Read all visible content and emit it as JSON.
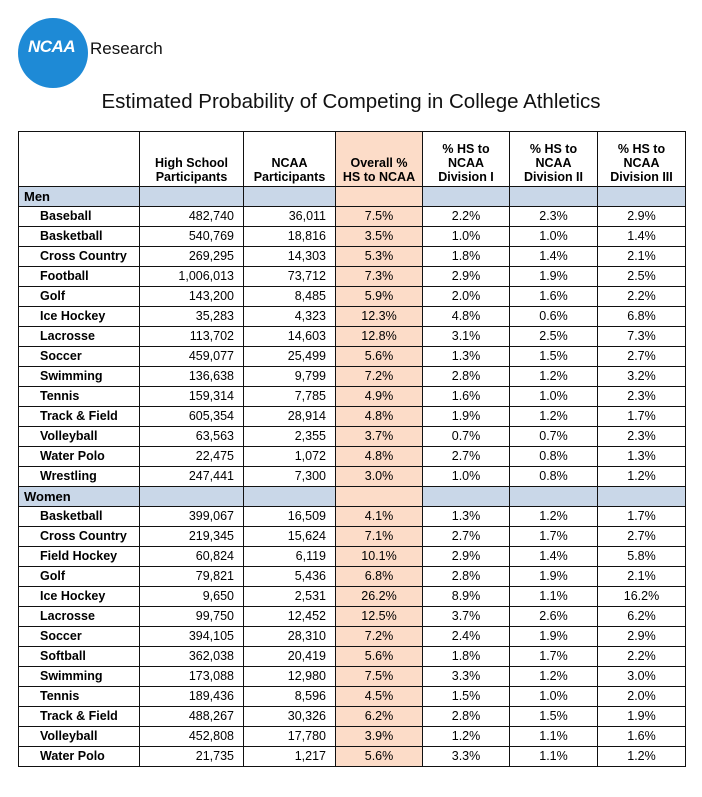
{
  "brand": {
    "logo_text": "NCAA",
    "suffix": "Research"
  },
  "title": "Estimated Probability of Competing in College Athletics",
  "table": {
    "headers": {
      "sport": "",
      "hs": [
        "High School",
        "Participants"
      ],
      "ncaa": [
        "NCAA",
        "Participants"
      ],
      "overall": [
        "Overall %",
        "HS to NCAA"
      ],
      "d1": [
        "% HS to",
        "NCAA",
        "Division I"
      ],
      "d2": [
        "% HS to",
        "NCAA",
        "Division II"
      ],
      "d3": [
        "% HS to",
        "NCAA",
        "Division III"
      ]
    },
    "sections": [
      {
        "label": "Men",
        "rows": [
          [
            "Baseball",
            "482,740",
            "36,011",
            "7.5%",
            "2.2%",
            "2.3%",
            "2.9%"
          ],
          [
            "Basketball",
            "540,769",
            "18,816",
            "3.5%",
            "1.0%",
            "1.0%",
            "1.4%"
          ],
          [
            "Cross Country",
            "269,295",
            "14,303",
            "5.3%",
            "1.8%",
            "1.4%",
            "2.1%"
          ],
          [
            "Football",
            "1,006,013",
            "73,712",
            "7.3%",
            "2.9%",
            "1.9%",
            "2.5%"
          ],
          [
            "Golf",
            "143,200",
            "8,485",
            "5.9%",
            "2.0%",
            "1.6%",
            "2.2%"
          ],
          [
            "Ice Hockey",
            "35,283",
            "4,323",
            "12.3%",
            "4.8%",
            "0.6%",
            "6.8%"
          ],
          [
            "Lacrosse",
            "113,702",
            "14,603",
            "12.8%",
            "3.1%",
            "2.5%",
            "7.3%"
          ],
          [
            "Soccer",
            "459,077",
            "25,499",
            "5.6%",
            "1.3%",
            "1.5%",
            "2.7%"
          ],
          [
            "Swimming",
            "136,638",
            "9,799",
            "7.2%",
            "2.8%",
            "1.2%",
            "3.2%"
          ],
          [
            "Tennis",
            "159,314",
            "7,785",
            "4.9%",
            "1.6%",
            "1.0%",
            "2.3%"
          ],
          [
            "Track & Field",
            "605,354",
            "28,914",
            "4.8%",
            "1.9%",
            "1.2%",
            "1.7%"
          ],
          [
            "Volleyball",
            "63,563",
            "2,355",
            "3.7%",
            "0.7%",
            "0.7%",
            "2.3%"
          ],
          [
            "Water Polo",
            "22,475",
            "1,072",
            "4.8%",
            "2.7%",
            "0.8%",
            "1.3%"
          ],
          [
            "Wrestling",
            "247,441",
            "7,300",
            "3.0%",
            "1.0%",
            "0.8%",
            "1.2%"
          ]
        ]
      },
      {
        "label": "Women",
        "rows": [
          [
            "Basketball",
            "399,067",
            "16,509",
            "4.1%",
            "1.3%",
            "1.2%",
            "1.7%"
          ],
          [
            "Cross Country",
            "219,345",
            "15,624",
            "7.1%",
            "2.7%",
            "1.7%",
            "2.7%"
          ],
          [
            "Field Hockey",
            "60,824",
            "6,119",
            "10.1%",
            "2.9%",
            "1.4%",
            "5.8%"
          ],
          [
            "Golf",
            "79,821",
            "5,436",
            "6.8%",
            "2.8%",
            "1.9%",
            "2.1%"
          ],
          [
            "Ice Hockey",
            "9,650",
            "2,531",
            "26.2%",
            "8.9%",
            "1.1%",
            "16.2%"
          ],
          [
            "Lacrosse",
            "99,750",
            "12,452",
            "12.5%",
            "3.7%",
            "2.6%",
            "6.2%"
          ],
          [
            "Soccer",
            "394,105",
            "28,310",
            "7.2%",
            "2.4%",
            "1.9%",
            "2.9%"
          ],
          [
            "Softball",
            "362,038",
            "20,419",
            "5.6%",
            "1.8%",
            "1.7%",
            "2.2%"
          ],
          [
            "Swimming",
            "173,088",
            "12,980",
            "7.5%",
            "3.3%",
            "1.2%",
            "3.0%"
          ],
          [
            "Tennis",
            "189,436",
            "8,596",
            "4.5%",
            "1.5%",
            "1.0%",
            "2.0%"
          ],
          [
            "Track & Field",
            "488,267",
            "30,326",
            "6.2%",
            "2.8%",
            "1.5%",
            "1.9%"
          ],
          [
            "Volleyball",
            "452,808",
            "17,780",
            "3.9%",
            "1.2%",
            "1.1%",
            "1.6%"
          ],
          [
            "Water Polo",
            "21,735",
            "1,217",
            "5.6%",
            "3.3%",
            "1.1%",
            "1.2%"
          ]
        ]
      }
    ]
  },
  "colors": {
    "logo_blue": "#1e8ad6",
    "highlight": "#fcdcc8",
    "section_bg": "#c9d7e8"
  }
}
